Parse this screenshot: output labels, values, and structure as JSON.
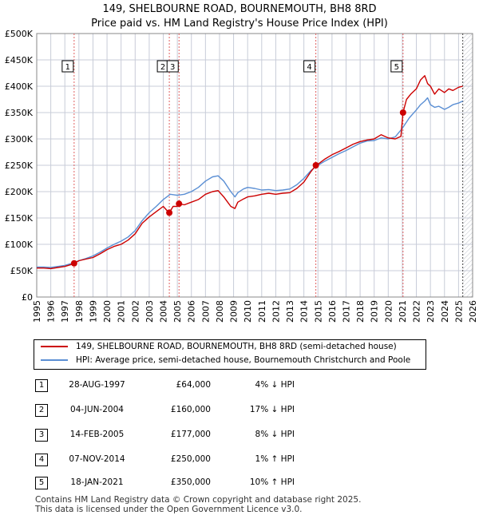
{
  "header": {
    "title_line1": "149, SHELBOURNE ROAD, BOURNEMOUTH, BH8 8RD",
    "title_line2": "Price paid vs. HM Land Registry's House Price Index (HPI)"
  },
  "colors": {
    "property": "#cc0000",
    "hpi": "#5b8fd4",
    "vline": "#e06060",
    "grid": "#c8ccd8",
    "plot_bg": "#ffffff"
  },
  "chart_data": {
    "type": "line",
    "title": "Price paid vs. HM Land Registry's House Price Index (HPI)",
    "xlabel": "",
    "ylabel": "",
    "xlim": [
      1995,
      2026
    ],
    "ylim": [
      0,
      500000
    ],
    "x_ticks": [
      "1995",
      "1996",
      "1997",
      "1998",
      "1999",
      "2000",
      "2001",
      "2002",
      "2003",
      "2004",
      "2005",
      "2006",
      "2007",
      "2008",
      "2009",
      "2010",
      "2011",
      "2012",
      "2013",
      "2014",
      "2015",
      "2016",
      "2017",
      "2018",
      "2019",
      "2020",
      "2021",
      "2022",
      "2023",
      "2024",
      "2025",
      "2026"
    ],
    "y_ticks": [
      {
        "value": 0,
        "label": "£0"
      },
      {
        "value": 50000,
        "label": "£50K"
      },
      {
        "value": 100000,
        "label": "£100K"
      },
      {
        "value": 150000,
        "label": "£150K"
      },
      {
        "value": 200000,
        "label": "£200K"
      },
      {
        "value": 250000,
        "label": "£250K"
      },
      {
        "value": 300000,
        "label": "£300K"
      },
      {
        "value": 350000,
        "label": "£350K"
      },
      {
        "value": 400000,
        "label": "£400K"
      },
      {
        "value": 450000,
        "label": "£450K"
      },
      {
        "value": 500000,
        "label": "£500K"
      }
    ],
    "data_end_year": 2025.3,
    "series": [
      {
        "name": "149, SHELBOURNE ROAD, BOURNEMOUTH, BH8 8RD (semi-detached house)",
        "color": "#cc0000",
        "x": [
          1995.0,
          1995.5,
          1996.0,
          1996.5,
          1997.0,
          1997.5,
          1997.66,
          1998.0,
          1998.5,
          1999.0,
          1999.5,
          2000.0,
          2000.5,
          2001.0,
          2001.5,
          2002.0,
          2002.5,
          2003.0,
          2003.5,
          2004.0,
          2004.4,
          2004.43,
          2004.7,
          2005.0,
          2005.12,
          2005.5,
          2006.0,
          2006.5,
          2007.0,
          2007.5,
          2007.9,
          2008.3,
          2008.8,
          2009.1,
          2009.3,
          2009.7,
          2010.0,
          2010.5,
          2011.0,
          2011.5,
          2012.0,
          2012.5,
          2013.0,
          2013.5,
          2014.0,
          2014.5,
          2014.85,
          2015.0,
          2015.5,
          2016.0,
          2016.5,
          2017.0,
          2017.5,
          2018.0,
          2018.5,
          2019.0,
          2019.5,
          2020.0,
          2020.5,
          2020.9,
          2021.05,
          2021.3,
          2021.6,
          2022.0,
          2022.3,
          2022.6,
          2022.8,
          2023.0,
          2023.3,
          2023.6,
          2024.0,
          2024.3,
          2024.6,
          2025.0,
          2025.3
        ],
        "y": [
          55000,
          55000,
          54000,
          56000,
          58000,
          62000,
          64000,
          69000,
          72000,
          75000,
          82000,
          90000,
          96000,
          100000,
          108000,
          120000,
          140000,
          152000,
          162000,
          172000,
          160000,
          160000,
          172000,
          172000,
          177000,
          175000,
          180000,
          185000,
          195000,
          200000,
          202000,
          190000,
          172000,
          168000,
          180000,
          186000,
          190000,
          192000,
          195000,
          197000,
          195000,
          197000,
          198000,
          206000,
          218000,
          238000,
          250000,
          252000,
          262000,
          270000,
          276000,
          283000,
          290000,
          295000,
          298000,
          300000,
          308000,
          302000,
          300000,
          305000,
          350000,
          375000,
          385000,
          395000,
          412000,
          420000,
          405000,
          400000,
          385000,
          395000,
          388000,
          395000,
          392000,
          398000,
          400000
        ]
      },
      {
        "name": "HPI: Average price, semi-detached house, Bournemouth Christchurch and Poole",
        "color": "#5b8fd4",
        "x": [
          1995.0,
          1995.5,
          1996.0,
          1996.5,
          1997.0,
          1997.5,
          1998.0,
          1998.5,
          1999.0,
          1999.5,
          2000.0,
          2000.5,
          2001.0,
          2001.5,
          2002.0,
          2002.5,
          2003.0,
          2003.5,
          2004.0,
          2004.5,
          2005.0,
          2005.5,
          2006.0,
          2006.5,
          2007.0,
          2007.5,
          2007.9,
          2008.3,
          2008.8,
          2009.1,
          2009.3,
          2009.7,
          2010.0,
          2010.5,
          2011.0,
          2011.5,
          2012.0,
          2012.5,
          2013.0,
          2013.5,
          2014.0,
          2014.5,
          2015.0,
          2015.5,
          2016.0,
          2016.5,
          2017.0,
          2017.5,
          2018.0,
          2018.5,
          2019.0,
          2019.5,
          2020.0,
          2020.5,
          2021.0,
          2021.5,
          2022.0,
          2022.3,
          2022.6,
          2022.8,
          2023.0,
          2023.3,
          2023.6,
          2024.0,
          2024.3,
          2024.6,
          2025.0,
          2025.3
        ],
        "y": [
          57000,
          57000,
          56000,
          58000,
          60000,
          64000,
          69000,
          73000,
          78000,
          85000,
          93000,
          100000,
          106000,
          114000,
          126000,
          145000,
          160000,
          172000,
          185000,
          195000,
          193000,
          195000,
          200000,
          208000,
          220000,
          228000,
          230000,
          220000,
          200000,
          190000,
          198000,
          205000,
          208000,
          206000,
          203000,
          204000,
          202000,
          203000,
          205000,
          213000,
          225000,
          240000,
          250000,
          258000,
          265000,
          272000,
          278000,
          285000,
          292000,
          296000,
          297000,
          302000,
          300000,
          304000,
          320000,
          340000,
          355000,
          365000,
          372000,
          378000,
          365000,
          360000,
          362000,
          356000,
          360000,
          365000,
          368000,
          372000
        ]
      }
    ],
    "sales": [
      {
        "id": "1",
        "x": 1997.66,
        "value": 64000,
        "date": "28-AUG-1997",
        "price": "£64,000",
        "hpi": "4% ↓ HPI"
      },
      {
        "id": "2",
        "x": 2004.43,
        "value": 160000,
        "date": "04-JUN-2004",
        "price": "£160,000",
        "hpi": "17% ↓ HPI"
      },
      {
        "id": "3",
        "x": 2005.12,
        "value": 177000,
        "date": "14-FEB-2005",
        "price": "£177,000",
        "hpi": "8% ↓ HPI"
      },
      {
        "id": "4",
        "x": 2014.85,
        "value": 250000,
        "date": "07-NOV-2014",
        "price": "£250,000",
        "hpi": "1% ↑ HPI"
      },
      {
        "id": "5",
        "x": 2021.05,
        "value": 350000,
        "date": "18-JAN-2021",
        "price": "£350,000",
        "hpi": "10% ↑ HPI"
      }
    ]
  },
  "legend": {
    "property_label": "149, SHELBOURNE ROAD, BOURNEMOUTH, BH8 8RD (semi-detached house)",
    "hpi_label": "HPI: Average price, semi-detached house, Bournemouth Christchurch and Poole"
  },
  "footer": {
    "line1": "Contains HM Land Registry data © Crown copyright and database right 2025.",
    "line2": "This data is licensed under the Open Government Licence v3.0."
  }
}
